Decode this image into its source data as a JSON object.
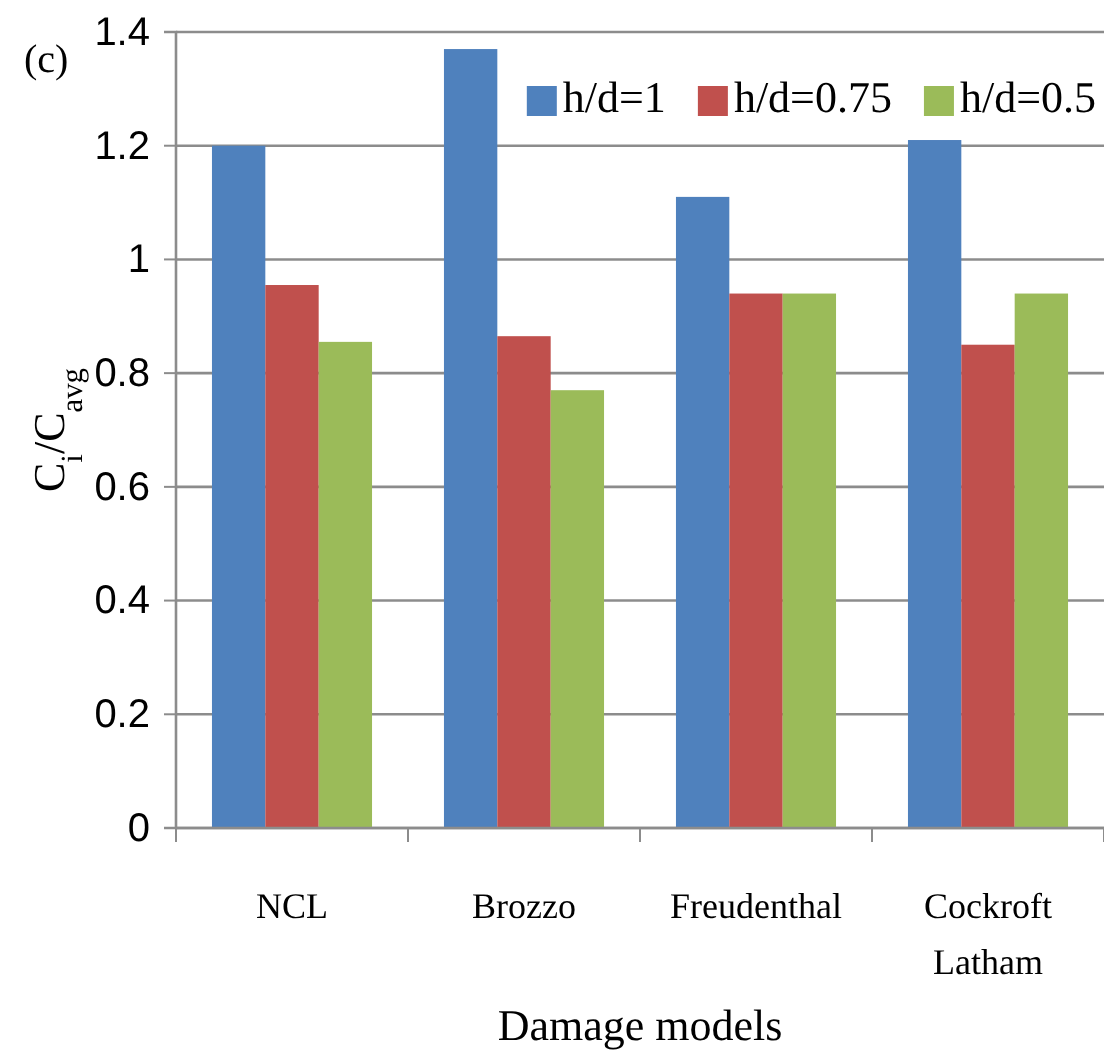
{
  "chart_data": {
    "type": "bar",
    "xlabel": "Damage models",
    "ylabel": "C$_{i}$/C$_{avg}$",
    "annotations": [
      "(c)"
    ],
    "categories": [
      "NCL",
      "Brozzo",
      "Freudenthal",
      "Cockroft Latham"
    ],
    "series": [
      {
        "name": "h/d=1",
        "color": "#4f81bd",
        "values": [
          1.2,
          1.37,
          1.11,
          1.21
        ]
      },
      {
        "name": "h/d=0.75",
        "color": "#c0504d",
        "values": [
          0.955,
          0.865,
          0.94,
          0.85
        ]
      },
      {
        "name": "h/d=0.5",
        "color": "#9bbb59",
        "values": [
          0.855,
          0.77,
          0.94,
          0.94
        ]
      }
    ],
    "ylim": [
      0,
      1.4
    ],
    "yticks": [
      0,
      0.2,
      0.4,
      0.6,
      0.8,
      1,
      1.2,
      1.4
    ],
    "grid": "y",
    "legend": "top"
  }
}
